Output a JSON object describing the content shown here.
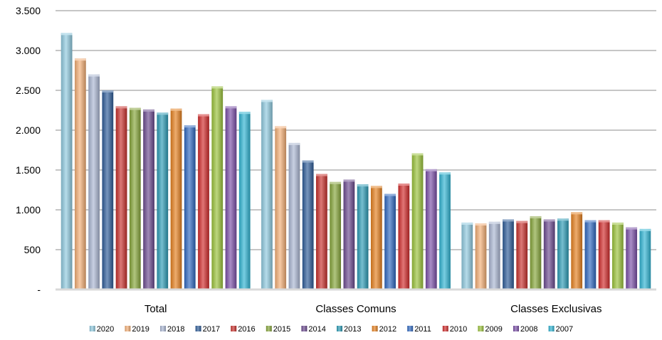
{
  "chart_data": {
    "type": "bar",
    "title": "",
    "xlabel": "",
    "ylabel": "",
    "categories": [
      "Total",
      "Classes Comuns",
      "Classes Exclusivas"
    ],
    "ylim": [
      0,
      3500
    ],
    "y_ticks": [
      0,
      500,
      1000,
      1500,
      2000,
      2500,
      3000,
      3500
    ],
    "y_tick_labels": [
      "-",
      "500",
      "1.000",
      "1.500",
      "2.000",
      "2.500",
      "3.000",
      "3.500"
    ],
    "grid": true,
    "legend_position": "bottom",
    "series": [
      {
        "name": "2020",
        "color": "#8fc9de",
        "values": [
          3220,
          2380,
          840
        ]
      },
      {
        "name": "2019",
        "color": "#f2ad74",
        "values": [
          2900,
          2050,
          830
        ]
      },
      {
        "name": "2018",
        "color": "#aab6d2",
        "values": [
          2700,
          1840,
          850
        ]
      },
      {
        "name": "2017",
        "color": "#2e5c98",
        "values": [
          2500,
          1620,
          880
        ]
      },
      {
        "name": "2016",
        "color": "#c8302c",
        "values": [
          2300,
          1450,
          860
        ]
      },
      {
        "name": "2015",
        "color": "#86a53a",
        "values": [
          2280,
          1350,
          920
        ]
      },
      {
        "name": "2014",
        "color": "#6b4a8f",
        "values": [
          2260,
          1380,
          880
        ]
      },
      {
        "name": "2013",
        "color": "#2c9bb5",
        "values": [
          2220,
          1320,
          890
        ]
      },
      {
        "name": "2012",
        "color": "#e5801f",
        "values": [
          2270,
          1300,
          970
        ]
      },
      {
        "name": "2011",
        "color": "#2f68c0",
        "values": [
          2060,
          1200,
          870
        ]
      },
      {
        "name": "2010",
        "color": "#d12b2b",
        "values": [
          2200,
          1330,
          870
        ]
      },
      {
        "name": "2009",
        "color": "#9ac23a",
        "values": [
          2550,
          1710,
          840
        ]
      },
      {
        "name": "2008",
        "color": "#7a4fa8",
        "values": [
          2300,
          1510,
          780
        ]
      },
      {
        "name": "2007",
        "color": "#30b4d2",
        "values": [
          2230,
          1470,
          760
        ]
      }
    ]
  }
}
